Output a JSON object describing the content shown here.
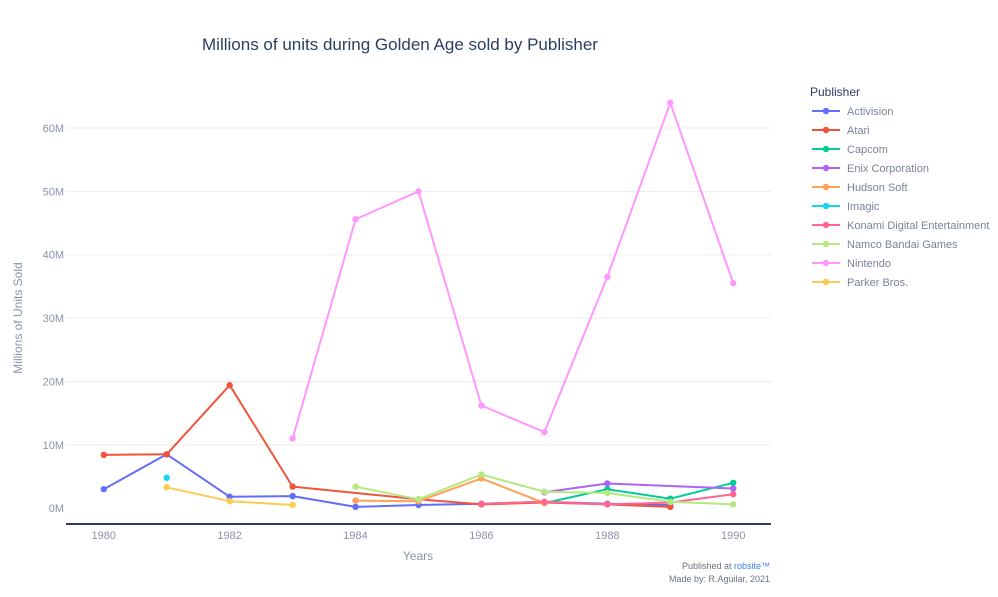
{
  "chart_data": {
    "type": "line",
    "title": "Millions of units during Golden Age sold by Publisher",
    "xlabel": "Years",
    "ylabel": "Millions of Units Sold",
    "xlim": [
      1979.4,
      1990.6
    ],
    "ylim": [
      -2.5,
      66
    ],
    "x_ticks": [
      1980,
      1982,
      1984,
      1986,
      1988,
      1990
    ],
    "y_ticks": [
      0,
      10,
      20,
      30,
      40,
      50,
      60
    ],
    "y_tick_labels": [
      "0M",
      "10M",
      "20M",
      "30M",
      "40M",
      "50M",
      "60M"
    ],
    "grid": true,
    "legend_title": "Publisher",
    "legend_position": "right",
    "series": [
      {
        "name": "Activision",
        "color": "#636efa",
        "points": [
          [
            1980,
            3.0
          ],
          [
            1981,
            8.5
          ],
          [
            1982,
            1.8
          ],
          [
            1983,
            1.9
          ],
          [
            1984,
            0.2
          ],
          [
            1985,
            0.5
          ],
          [
            1986,
            0.7
          ],
          [
            1987,
            1.0
          ],
          [
            1988,
            0.7
          ],
          [
            1989,
            0.5
          ]
        ]
      },
      {
        "name": "Atari",
        "color": "#ef553b",
        "points": [
          [
            1980,
            8.4
          ],
          [
            1981,
            8.5
          ],
          [
            1982,
            19.4
          ],
          [
            1983,
            3.4
          ],
          [
            1985,
            1.4
          ],
          [
            1986,
            0.6
          ],
          [
            1987,
            0.9
          ],
          [
            1988,
            0.6
          ],
          [
            1989,
            0.2
          ]
        ]
      },
      {
        "name": "Capcom",
        "color": "#00cc96",
        "points": [
          [
            1987,
            0.8
          ],
          [
            1988,
            3.0
          ],
          [
            1989,
            1.5
          ],
          [
            1990,
            4.0
          ]
        ]
      },
      {
        "name": "Enix Corporation",
        "color": "#ab63fa",
        "points": [
          [
            1987,
            2.5
          ],
          [
            1988,
            3.9
          ],
          [
            1990,
            3.1
          ]
        ]
      },
      {
        "name": "Hudson Soft",
        "color": "#ffa15a",
        "points": [
          [
            1984,
            1.2
          ],
          [
            1985,
            1.1
          ],
          [
            1986,
            4.7
          ],
          [
            1987,
            0.8
          ]
        ]
      },
      {
        "name": "Imagic",
        "color": "#19d3f3",
        "points": [
          [
            1981,
            4.8
          ]
        ]
      },
      {
        "name": "Konami Digital Entertainment",
        "color": "#ff6692",
        "points": [
          [
            1986,
            0.7
          ],
          [
            1987,
            1.0
          ],
          [
            1988,
            0.6
          ],
          [
            1989,
            0.9
          ],
          [
            1990,
            2.2
          ]
        ]
      },
      {
        "name": "Namco Bandai Games",
        "color": "#b6e880",
        "points": [
          [
            1984,
            3.4
          ],
          [
            1985,
            1.4
          ],
          [
            1986,
            5.3
          ],
          [
            1987,
            2.6
          ],
          [
            1988,
            2.4
          ],
          [
            1989,
            1.0
          ],
          [
            1990,
            0.6
          ]
        ]
      },
      {
        "name": "Nintendo",
        "color": "#ff97ff",
        "points": [
          [
            1983,
            11.0
          ],
          [
            1984,
            45.6
          ],
          [
            1985,
            50.0
          ],
          [
            1986,
            16.2
          ],
          [
            1987,
            12.0
          ],
          [
            1988,
            36.5
          ],
          [
            1989,
            64.0
          ],
          [
            1990,
            35.5
          ]
        ]
      },
      {
        "name": "Parker Bros.",
        "color": "#fecb52",
        "points": [
          [
            1981,
            3.3
          ],
          [
            1982,
            1.1
          ],
          [
            1983,
            0.5
          ]
        ]
      }
    ]
  },
  "footer": {
    "published_prefix": "Published at ",
    "published_link": "robsite™",
    "made_by": "Made by: R.Aguilar, 2021"
  }
}
